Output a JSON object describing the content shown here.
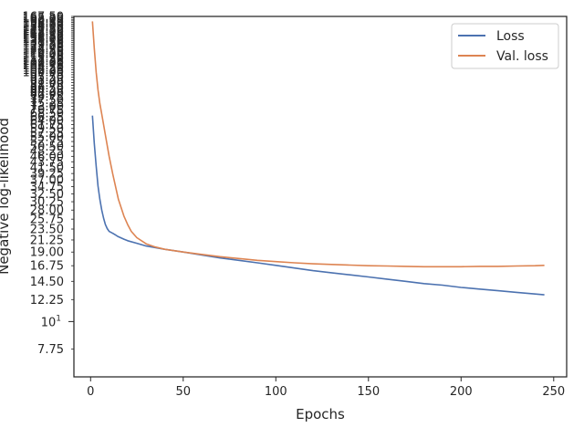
{
  "chart_data": {
    "type": "line",
    "xlabel": "Epochs",
    "ylabel": "Negative log-likelihood",
    "xlim": [
      -9,
      257
    ],
    "ylim": [
      6.0,
      167.5
    ],
    "yscale": "log",
    "grid": false,
    "legend_position": "top-right",
    "x_ticks": [
      0,
      50,
      100,
      150,
      200,
      250
    ],
    "y_ticks": [
      7.75,
      12.25,
      14.5,
      16.75,
      19.0,
      21.25,
      23.5,
      25.75,
      28.0,
      30.25,
      32.5,
      34.75,
      37.0,
      39.25,
      41.5,
      43.75,
      46.0,
      48.25,
      50.5,
      52.75,
      55.0,
      57.25,
      59.5,
      61.75,
      64.0,
      66.25,
      68.5,
      70.75,
      73.0,
      75.25,
      77.5,
      79.75,
      82.0,
      84.25,
      86.5,
      88.75,
      91.0,
      93.25,
      95.5,
      97.75,
      100.0,
      102.25,
      104.5,
      106.75,
      109.0,
      111.25,
      113.5,
      115.75,
      118.0,
      120.25,
      122.5,
      124.75,
      127.0,
      129.25,
      131.5,
      133.75,
      136.0,
      138.25,
      140.5,
      142.75,
      145.0,
      147.25,
      149.5,
      151.75,
      154.0,
      156.25,
      158.5,
      160.75,
      163.0,
      165.25,
      167.5
    ],
    "y_tick_labels": [
      "7.75",
      "12.25",
      "14.50",
      "16.75",
      "19.00",
      "21.25",
      "23.50",
      "25.75",
      "28.00",
      "30.25",
      "32.50",
      "34.75",
      "37.00",
      "39.25",
      "41.50",
      "43.75",
      "46.00",
      "48.25",
      "50.50",
      "52.75",
      "55.00",
      "57.25",
      "59.50",
      "61.75",
      "64.00",
      "66.25",
      "68.50",
      "70.75",
      "73.00",
      "75.25",
      "77.50",
      "79.75",
      "82.00",
      "84.25",
      "86.50",
      "88.75",
      "91.00",
      "93.25",
      "95.50",
      "97.75",
      "100.00",
      "102.25",
      "104.50",
      "106.75",
      "109.00",
      "111.25",
      "113.50",
      "115.75",
      "118.00",
      "120.25",
      "122.50",
      "124.75",
      "127.00",
      "129.25",
      "131.50",
      "133.75",
      "136.00",
      "138.25",
      "140.50",
      "142.75",
      "145.00",
      "147.25",
      "149.50",
      "151.75",
      "154.00",
      "156.25",
      "158.50",
      "160.75",
      "163.00",
      "165.25",
      "167.50"
    ],
    "y_major_tick": {
      "value": 10,
      "base": "10",
      "exponent": "1"
    },
    "series": [
      {
        "name": "Loss",
        "color": "#4c72b0",
        "x": [
          1,
          2,
          3,
          4,
          5,
          6,
          7,
          8,
          9,
          10,
          12,
          15,
          18,
          20,
          25,
          30,
          40,
          50,
          60,
          70,
          80,
          90,
          100,
          110,
          120,
          130,
          140,
          150,
          160,
          170,
          180,
          190,
          200,
          210,
          220,
          230,
          240,
          245
        ],
        "y": [
          67,
          52,
          42,
          35,
          31,
          28,
          26,
          24.5,
          23.6,
          23.0,
          22.6,
          21.9,
          21.4,
          21.1,
          20.6,
          20.1,
          19.5,
          19.0,
          18.5,
          18.0,
          17.6,
          17.2,
          16.8,
          16.4,
          16.0,
          15.7,
          15.4,
          15.1,
          14.8,
          14.5,
          14.2,
          14.0,
          13.7,
          13.5,
          13.3,
          13.1,
          12.9,
          12.8
        ]
      },
      {
        "name": "Val. loss",
        "color": "#dd8452",
        "x": [
          1,
          2,
          3,
          4,
          5,
          6,
          8,
          10,
          12,
          15,
          18,
          20,
          22,
          25,
          30,
          35,
          40,
          50,
          60,
          70,
          80,
          90,
          100,
          110,
          120,
          130,
          140,
          150,
          160,
          170,
          180,
          190,
          200,
          210,
          220,
          230,
          240,
          245
        ],
        "y": [
          160,
          125,
          100,
          85,
          75,
          68,
          56,
          46,
          39,
          31,
          26.5,
          24.5,
          23.0,
          21.7,
          20.5,
          19.9,
          19.5,
          19.0,
          18.6,
          18.2,
          17.9,
          17.6,
          17.4,
          17.2,
          17.05,
          16.95,
          16.85,
          16.75,
          16.7,
          16.65,
          16.6,
          16.6,
          16.6,
          16.65,
          16.65,
          16.7,
          16.75,
          16.8
        ]
      }
    ]
  }
}
